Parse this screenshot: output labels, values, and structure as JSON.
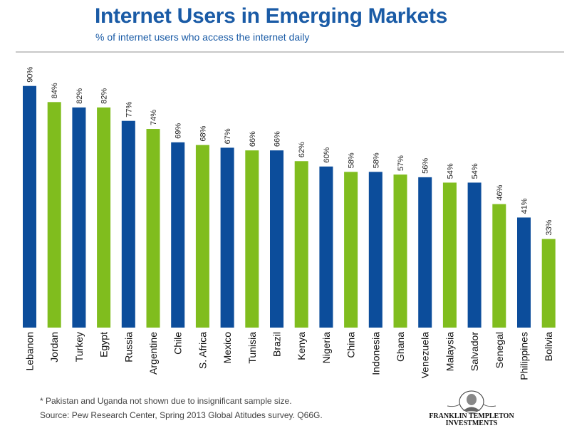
{
  "header": {
    "title": "Internet Users in Emerging Markets",
    "subtitle": "% of internet users who access the internet daily"
  },
  "colors": {
    "blue": "#0c4d9b",
    "green": "#80bd1e",
    "title": "#1a5ba6"
  },
  "chart_data": {
    "type": "bar",
    "title": "Internet Users in Emerging Markets",
    "subtitle": "% of internet users who access the internet daily",
    "ylim": [
      0,
      100
    ],
    "grid": false,
    "categories": [
      "Lebanon",
      "Jordan",
      "Turkey",
      "Egypt",
      "Russia",
      "Argentine",
      "Chile",
      "S. Africa",
      "Mexico",
      "Tunisia",
      "Brazil",
      "Kenya",
      "Nigeria",
      "China",
      "Indonesia",
      "Ghana",
      "Venezuela",
      "Malaysia",
      "Salvador",
      "Senegal",
      "Philippines",
      "Bolivia"
    ],
    "values": [
      90,
      84,
      82,
      82,
      77,
      74,
      69,
      68,
      67,
      66,
      66,
      62,
      60,
      58,
      58,
      57,
      56,
      54,
      54,
      46,
      41,
      33
    ],
    "value_labels": [
      "90%",
      "84%",
      "82%",
      "82%",
      "77%",
      "74%",
      "69%",
      "68%",
      "67%",
      "66%",
      "66%",
      "62%",
      "60%",
      "58%",
      "58%",
      "57%",
      "56%",
      "54%",
      "54%",
      "46%",
      "41%",
      "33%"
    ],
    "bar_colors": [
      "blue",
      "green",
      "blue",
      "green",
      "blue",
      "green",
      "blue",
      "green",
      "blue",
      "green",
      "blue",
      "green",
      "blue",
      "green",
      "blue",
      "green",
      "blue",
      "green",
      "blue",
      "green",
      "blue",
      "green"
    ]
  },
  "footer": {
    "footnote": "* Pakistan and Uganda not shown due to insignificant sample size.",
    "source": "Source: Pew Research Center, Spring 2013 Global Atitudes survey. Q66G.",
    "logo_line1": "FRANKLIN TEMPLETON",
    "logo_line2": "INVESTMENTS"
  }
}
